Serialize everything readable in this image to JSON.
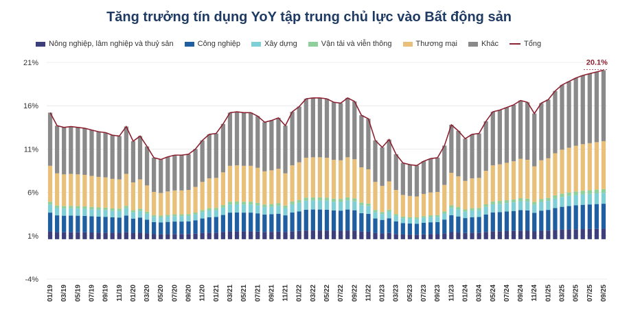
{
  "chart_data": {
    "type": "bar",
    "stacked": true,
    "title": "Tăng trưởng tín dụng YoY tập trung chủ lực vào Bất động sản",
    "yticks": [
      "21%",
      "16%",
      "11%",
      "6%",
      "1%",
      "-4%"
    ],
    "ylim": [
      -4,
      21
    ],
    "last_label": "20.1%",
    "categories": [
      "01/19",
      "02/19",
      "03/19",
      "04/19",
      "05/19",
      "06/19",
      "07/19",
      "08/19",
      "09/19",
      "10/19",
      "11/19",
      "12/19",
      "01/20",
      "02/20",
      "03/20",
      "04/20",
      "05/20",
      "06/20",
      "07/20",
      "08/20",
      "09/20",
      "10/20",
      "11/20",
      "12/20",
      "01/21",
      "02/21",
      "03/21",
      "04/21",
      "05/21",
      "06/21",
      "07/21",
      "08/21",
      "09/21",
      "10/21",
      "11/21",
      "12/21",
      "01/22",
      "02/22",
      "03/22",
      "04/22",
      "05/22",
      "06/22",
      "07/22",
      "08/22",
      "09/22",
      "10/22",
      "11/22",
      "12/22",
      "01/23",
      "02/23",
      "03/23",
      "04/23",
      "05/23",
      "06/23",
      "07/23",
      "08/23",
      "09/23",
      "10/23",
      "11/23",
      "12/23",
      "01/24",
      "02/24",
      "03/24",
      "04/24",
      "05/24",
      "06/24",
      "07/24",
      "08/24",
      "09/24",
      "10/24",
      "11/24",
      "12/24",
      "01/25",
      "02/25",
      "03/25",
      "04/25",
      "05/25",
      "06/25",
      "07/25",
      "08/25",
      "09/25"
    ],
    "xticks_shown": [
      "01/19",
      "03/19",
      "05/19",
      "07/19",
      "09/19",
      "11/19",
      "01/20",
      "03/20",
      "05/20",
      "07/20",
      "09/20",
      "11/20",
      "01/21",
      "03/21",
      "05/21",
      "07/21",
      "09/21",
      "11/21",
      "01/22",
      "03/22",
      "05/22",
      "07/22",
      "09/22",
      "11/22",
      "01/23",
      "03/23",
      "05/23",
      "07/23",
      "09/23",
      "11/23",
      "01/24",
      "03/24",
      "05/24",
      "07/24",
      "09/24",
      "11/24",
      "01/25",
      "03/25",
      "05/25",
      "07/25",
      "09/25"
    ],
    "series": [
      {
        "name": "Nông nghiệp, lâm nghiệp và thuỷ sản",
        "color": "#3d3f7a",
        "kind": "bar",
        "share": 0.062
      },
      {
        "name": "Công nghiệp",
        "color": "#1f5fa1",
        "kind": "bar",
        "share": 0.148
      },
      {
        "name": "Xây dựng",
        "color": "#7fcfd6",
        "kind": "bar",
        "share": 0.064
      },
      {
        "name": "Vận tải và viễn thông",
        "color": "#8fcf9c",
        "kind": "bar",
        "share": 0.022
      },
      {
        "name": "Thương mại",
        "color": "#e8c07a",
        "kind": "bar",
        "share": 0.284
      },
      {
        "name": "Khác",
        "color": "#8a8a8a",
        "kind": "bar",
        "share": 0.42
      },
      {
        "name": "Tổng",
        "color": "#8b2232",
        "kind": "line",
        "values": [
          15.2,
          13.7,
          13.5,
          13.6,
          13.5,
          13.4,
          13.2,
          13.0,
          12.9,
          12.6,
          12.5,
          13.6,
          11.9,
          12.5,
          11.3,
          10.0,
          9.8,
          10.1,
          10.3,
          10.3,
          10.4,
          11.0,
          12.0,
          12.7,
          12.8,
          13.9,
          15.2,
          15.3,
          15.2,
          15.2,
          14.8,
          14.1,
          14.3,
          14.6,
          13.7,
          15.3,
          15.9,
          16.8,
          16.9,
          16.9,
          16.8,
          16.4,
          16.3,
          16.9,
          16.5,
          14.9,
          14.5,
          12.0,
          11.2,
          12.1,
          10.4,
          9.4,
          9.2,
          9.1,
          9.6,
          9.9,
          10.0,
          11.4,
          13.8,
          13.1,
          12.2,
          12.7,
          12.8,
          14.2,
          15.3,
          15.5,
          15.8,
          16.1,
          16.6,
          16.4,
          15.1,
          16.3,
          16.7,
          17.7,
          18.4,
          18.8,
          19.2,
          19.5,
          19.7,
          19.9,
          20.1
        ]
      }
    ]
  }
}
